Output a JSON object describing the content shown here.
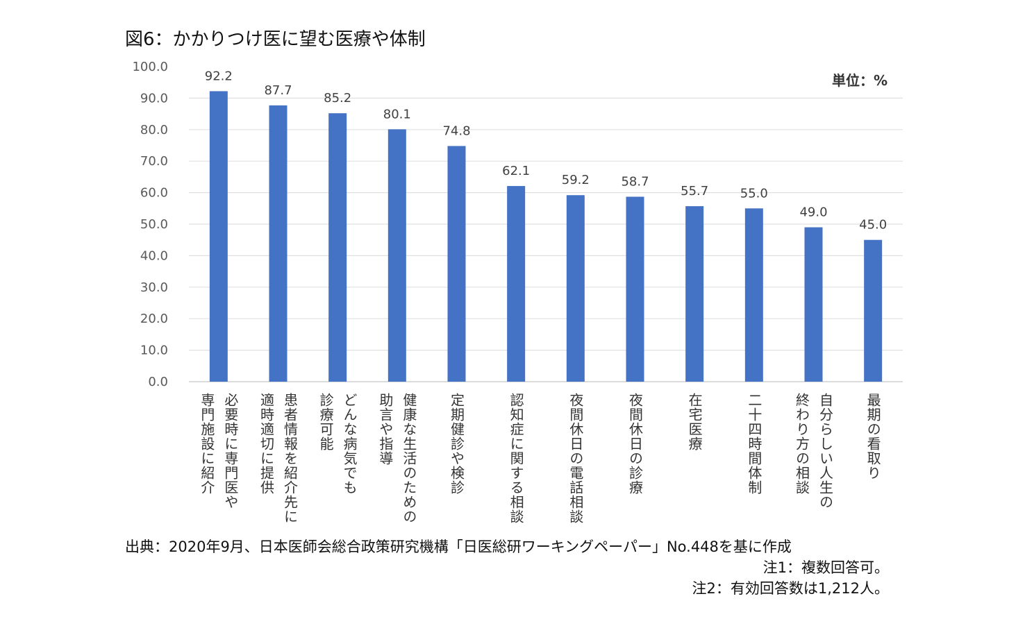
{
  "title": "図6：かかりつけ医に望む医療や体制",
  "unit_label": "単位：%",
  "chart_data": {
    "type": "bar",
    "orientation": "vertical",
    "title": "図6：かかりつけ医に望む医療や体制",
    "xlabel": "",
    "ylabel": "",
    "ylim": [
      0,
      100
    ],
    "y_ticks": [
      "0.0",
      "10.0",
      "20.0",
      "30.0",
      "40.0",
      "50.0",
      "60.0",
      "70.0",
      "80.0",
      "90.0",
      "100.0"
    ],
    "grid": true,
    "bar_color": "#4472C4",
    "categories": [
      "必要時に専門医や\n専門施設に紹介",
      "患者情報を紹介先に\n適時適切に提供",
      "どんな病気でも\n診療可能",
      "健康な生活のための\n助言や指導",
      "定期健診や検診",
      "認知症に関する相談",
      "夜間休日の電話相談",
      "夜間休日の診療",
      "在宅医療",
      "二十四時間体制",
      "自分らしい人生の\n終わり方の相談",
      "最期の看取り"
    ],
    "values": [
      92.2,
      87.7,
      85.2,
      80.1,
      74.8,
      62.1,
      59.2,
      58.7,
      55.7,
      55.0,
      49.0,
      45.0
    ],
    "value_labels": [
      "92.2",
      "87.7",
      "85.2",
      "80.1",
      "74.8",
      "62.1",
      "59.2",
      "58.7",
      "55.7",
      "55.0",
      "49.0",
      "45.0"
    ]
  },
  "source": "出典：2020年9月、日本医師会総合政策研究機構「日医総研ワーキングペーパー」No.448を基に作成",
  "notes": [
    "注1：複数回答可。",
    "注2：有効回答数は1,212人。"
  ]
}
